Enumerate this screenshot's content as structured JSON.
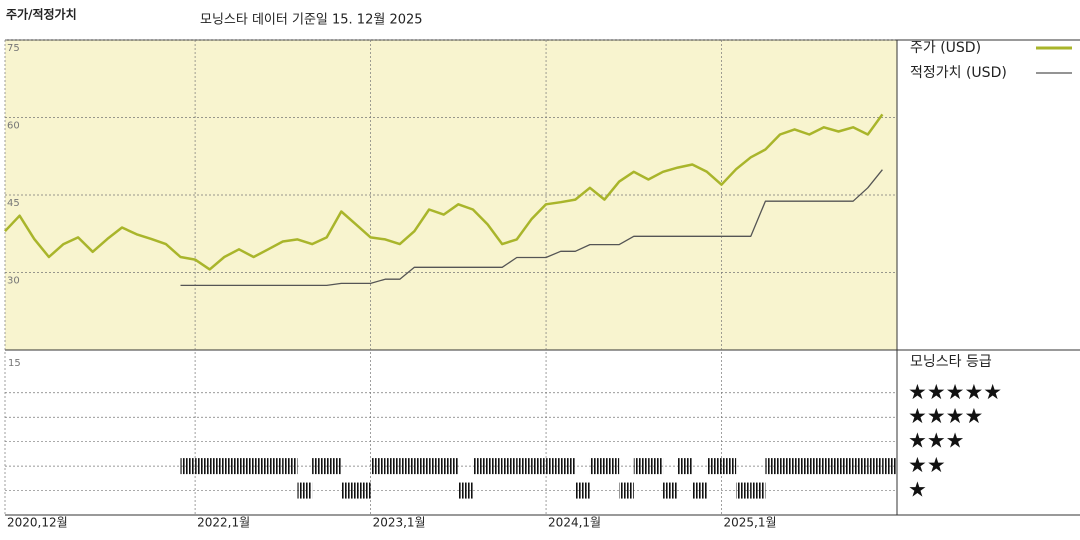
{
  "chart_data": {
    "type": "line",
    "title": "주가/적정가치",
    "subtitle": "모닝스타 데이터 기준일 15. 12월 2025",
    "x": [
      "2020-12",
      "2021-01",
      "2021-02",
      "2021-03",
      "2021-04",
      "2021-05",
      "2021-06",
      "2021-07",
      "2021-08",
      "2021-09",
      "2021-10",
      "2021-11",
      "2021-12",
      "2022-01",
      "2022-02",
      "2022-03",
      "2022-04",
      "2022-05",
      "2022-06",
      "2022-07",
      "2022-08",
      "2022-09",
      "2022-10",
      "2022-11",
      "2022-12",
      "2023-01",
      "2023-02",
      "2023-03",
      "2023-04",
      "2023-05",
      "2023-06",
      "2023-07",
      "2023-08",
      "2023-09",
      "2023-10",
      "2023-11",
      "2023-12",
      "2024-01",
      "2024-02",
      "2024-03",
      "2024-04",
      "2024-05",
      "2024-06",
      "2024-07",
      "2024-08",
      "2024-09",
      "2024-10",
      "2024-11",
      "2024-12",
      "2025-01",
      "2025-02",
      "2025-03",
      "2025-04",
      "2025-05",
      "2025-06",
      "2025-07",
      "2025-08",
      "2025-09",
      "2025-10",
      "2025-11",
      "2025-12"
    ],
    "xlim": [
      "2020-12",
      "2026-01"
    ],
    "xticks": [
      {
        "value": "2020-12",
        "label": "2020,12월"
      },
      {
        "value": "2022-01",
        "label": "2022,1월"
      },
      {
        "value": "2023-01",
        "label": "2023,1월"
      },
      {
        "value": "2024-01",
        "label": "2024,1월"
      },
      {
        "value": "2025-01",
        "label": "2025,1월"
      }
    ],
    "ylim": [
      15,
      75
    ],
    "yticks": [
      30,
      45,
      60,
      75
    ],
    "grid": true,
    "series": [
      {
        "name": "주가 (USD)",
        "color": "#a9b52b",
        "values": [
          38,
          41,
          36.5,
          33,
          35.5,
          36.8,
          34,
          36.5,
          38.7,
          37.4,
          36.5,
          35.5,
          33,
          32.5,
          30.6,
          33,
          34.5,
          33,
          34.5,
          36,
          36.4,
          35.5,
          36.8,
          41.8,
          39.3,
          36.8,
          36.4,
          35.5,
          38,
          42.2,
          41.2,
          43.2,
          42.2,
          39.3,
          35.5,
          36.4,
          40.3,
          43.2,
          43.6,
          44.1,
          46.4,
          44.1,
          47.6,
          49.5,
          48,
          49.5,
          50.3,
          50.9,
          49.5,
          47,
          50,
          52.3,
          53.8,
          56.7,
          57.7,
          56.7,
          58.1,
          57.3,
          58.1,
          56.7,
          60.6
        ]
      },
      {
        "name": "적정가치 (USD)",
        "color": "#555555",
        "values": [
          null,
          null,
          null,
          null,
          null,
          null,
          null,
          null,
          null,
          null,
          null,
          null,
          27.5,
          27.5,
          27.5,
          27.5,
          27.5,
          27.5,
          27.5,
          27.5,
          27.5,
          27.5,
          27.5,
          27.9,
          27.9,
          27.9,
          28.7,
          28.7,
          31,
          31,
          31,
          31,
          31,
          31,
          31,
          32.9,
          32.9,
          32.9,
          34.1,
          34.1,
          35.4,
          35.4,
          35.4,
          37,
          37,
          37,
          37,
          37,
          37,
          37,
          37,
          37,
          43.8,
          43.8,
          43.8,
          43.8,
          43.8,
          43.8,
          43.8,
          46.4,
          49.9
        ]
      }
    ],
    "rating_title": "모닝스타 등급",
    "rating_axis_label": "15",
    "rating_ylim": [
      0,
      6.75
    ],
    "rating_ticks": [
      {
        "value": 5,
        "label": "★★★★★"
      },
      {
        "value": 4,
        "label": "★★★★"
      },
      {
        "value": 3,
        "label": "★★★"
      },
      {
        "value": 2,
        "label": "★★"
      },
      {
        "value": 1,
        "label": "★"
      }
    ],
    "ratings": {
      "color": "#111111",
      "values": [
        null,
        null,
        null,
        null,
        null,
        null,
        null,
        null,
        null,
        null,
        null,
        null,
        2,
        2,
        2,
        2,
        2,
        2,
        2,
        2,
        1,
        2,
        2,
        1,
        1,
        2,
        2,
        2,
        2,
        2,
        2,
        1,
        2,
        2,
        2,
        2,
        2,
        2,
        2,
        1,
        2,
        2,
        1,
        2,
        2,
        1,
        2,
        1,
        2,
        2,
        1,
        1,
        2,
        2,
        2,
        2,
        2,
        2,
        2,
        2,
        2
      ]
    }
  }
}
